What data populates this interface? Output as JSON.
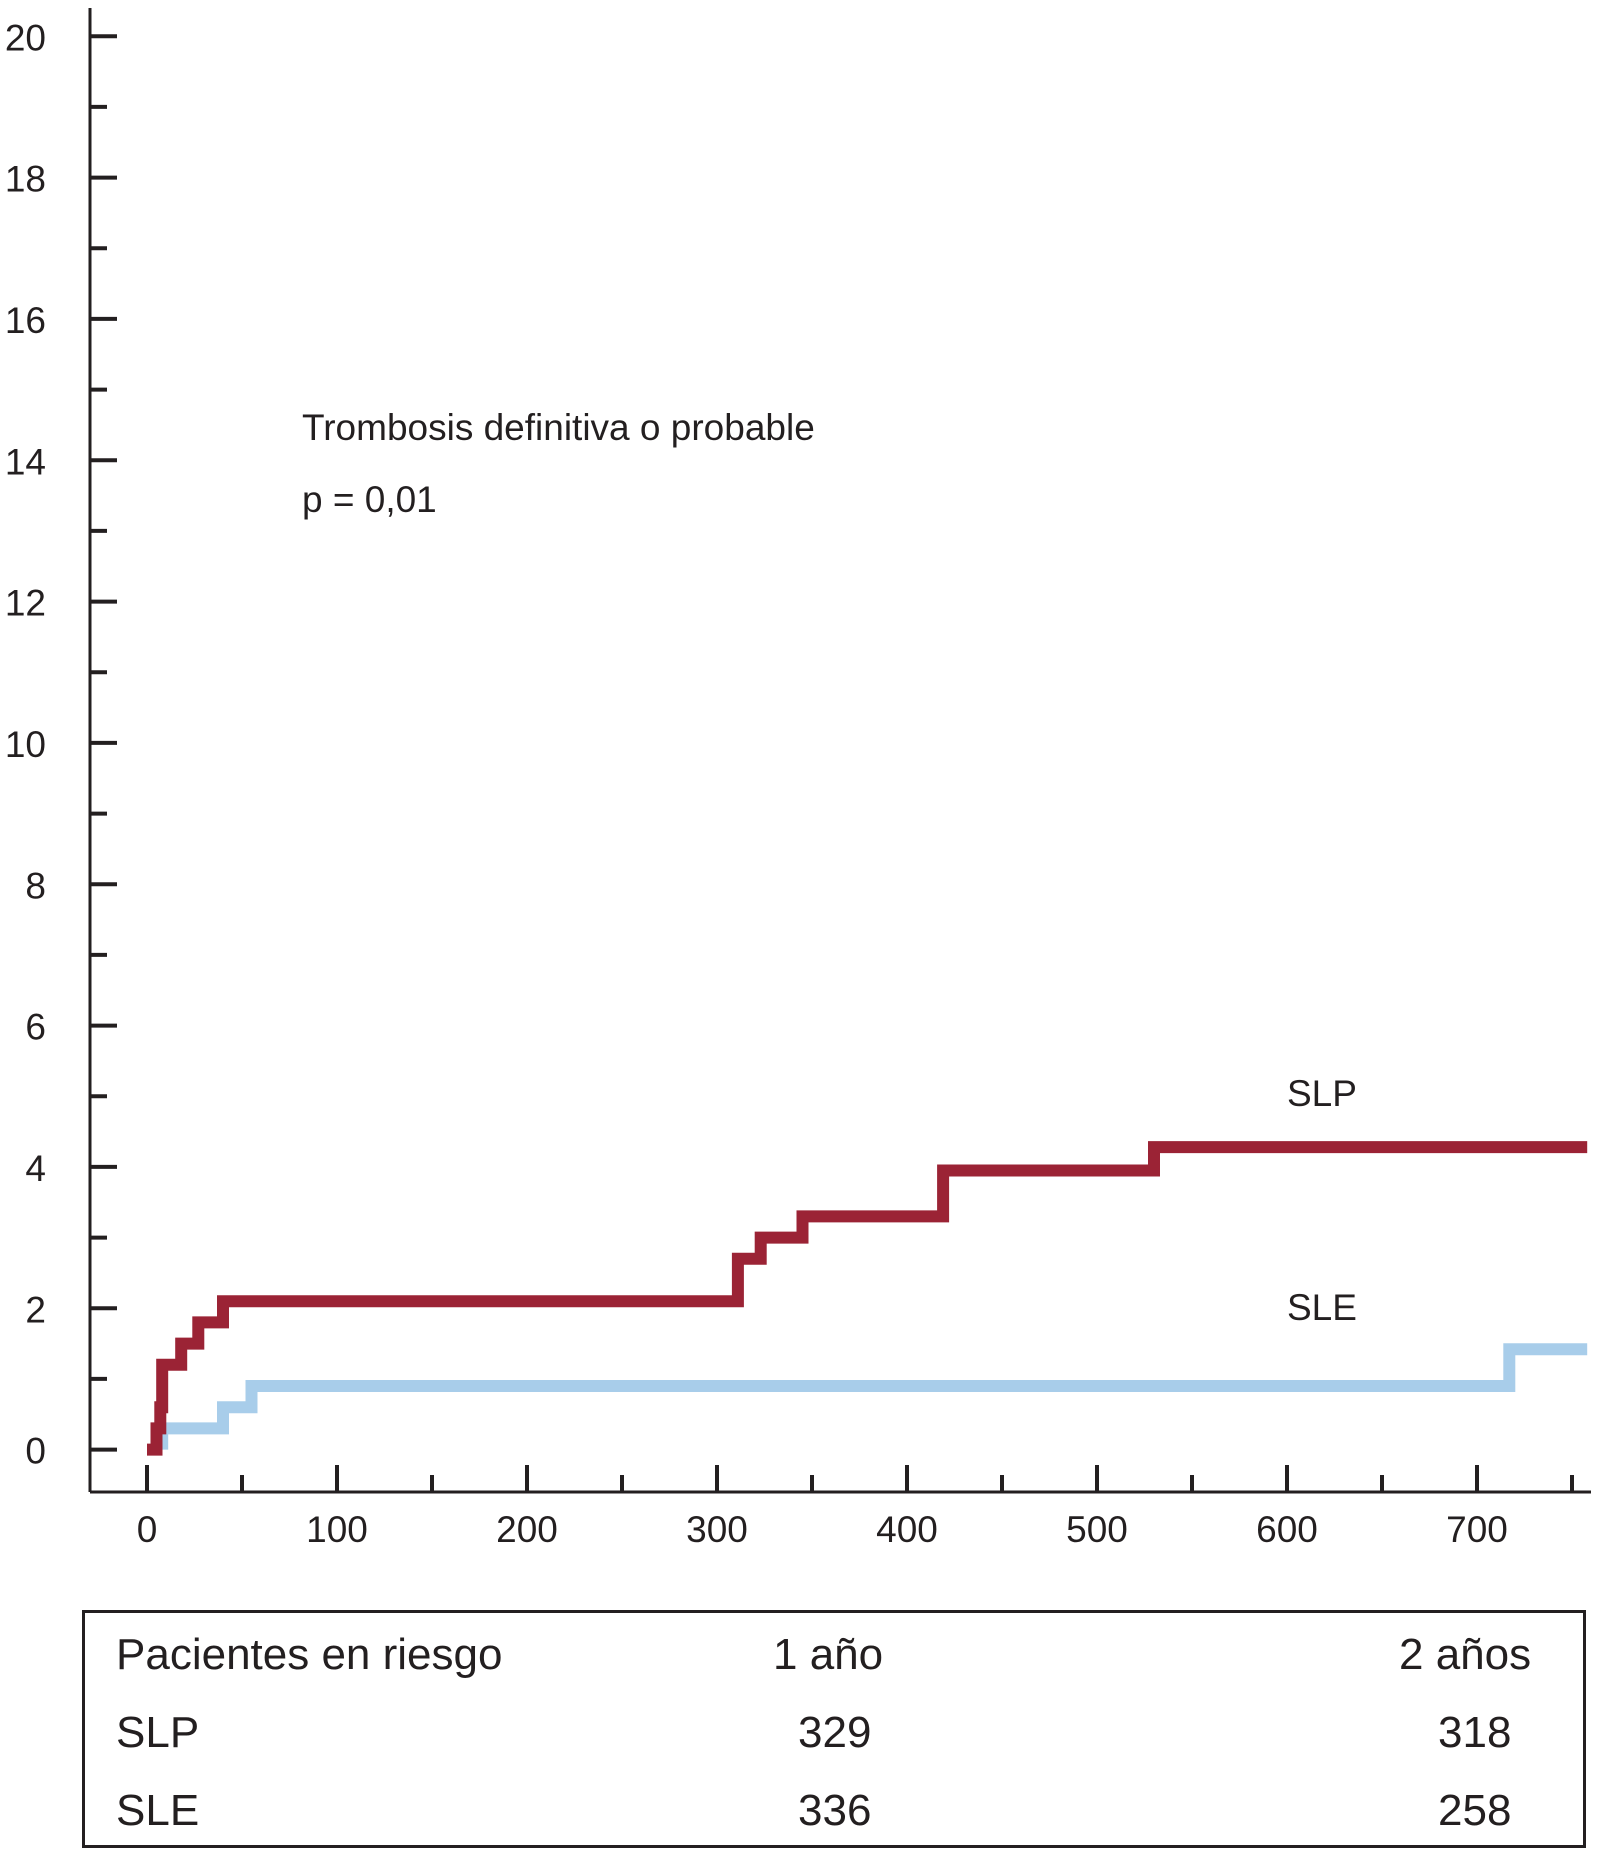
{
  "chart_data": {
    "type": "line",
    "title": "",
    "xlabel": "",
    "ylabel": "",
    "xlim": [
      -30,
      760
    ],
    "ylim": [
      -0.6,
      20.4
    ],
    "x_ticks": [
      0,
      100,
      200,
      300,
      400,
      500,
      600,
      700
    ],
    "x_minor_ticks": [
      50,
      150,
      250,
      350,
      450,
      550,
      650,
      750
    ],
    "y_ticks": [
      0,
      2,
      4,
      6,
      8,
      10,
      12,
      14,
      16,
      18,
      20
    ],
    "y_minor_ticks": [
      1,
      3,
      5,
      7,
      9,
      11,
      13,
      15,
      17,
      19
    ],
    "grid": false,
    "annotations": {
      "title_text": "Trombosis definitiva o probable",
      "p_value": "p = 0,01"
    },
    "series": [
      {
        "name": "SLP",
        "color": "#9b2335",
        "points": [
          [
            0,
            0
          ],
          [
            5,
            0
          ],
          [
            5,
            0.3
          ],
          [
            7,
            0.3
          ],
          [
            7,
            0.6
          ],
          [
            8,
            0.6
          ],
          [
            8,
            1.2
          ],
          [
            18,
            1.2
          ],
          [
            18,
            1.5
          ],
          [
            27,
            1.5
          ],
          [
            27,
            1.8
          ],
          [
            40,
            1.8
          ],
          [
            40,
            2.1
          ],
          [
            311,
            2.1
          ],
          [
            311,
            2.7
          ],
          [
            323,
            2.7
          ],
          [
            323,
            3.0
          ],
          [
            345,
            3.0
          ],
          [
            345,
            3.3
          ],
          [
            419,
            3.3
          ],
          [
            419,
            3.95
          ],
          [
            530,
            3.95
          ],
          [
            530,
            4.28
          ],
          [
            758,
            4.28
          ]
        ]
      },
      {
        "name": "SLE",
        "color": "#a8cdea",
        "points": [
          [
            8,
            0
          ],
          [
            8,
            0.3
          ],
          [
            40,
            0.3
          ],
          [
            40,
            0.6
          ],
          [
            55,
            0.6
          ],
          [
            55,
            0.9
          ],
          [
            717,
            0.9
          ],
          [
            717,
            1.42
          ],
          [
            758,
            1.42
          ]
        ]
      }
    ]
  },
  "risk_table": {
    "header": {
      "label": "Pacientes en riesgo",
      "col1": "1 año",
      "col2": "2 años"
    },
    "rows": [
      {
        "name": "SLP",
        "v1": "329",
        "v2": "318"
      },
      {
        "name": "SLE",
        "v1": "336",
        "v2": "258"
      }
    ]
  }
}
